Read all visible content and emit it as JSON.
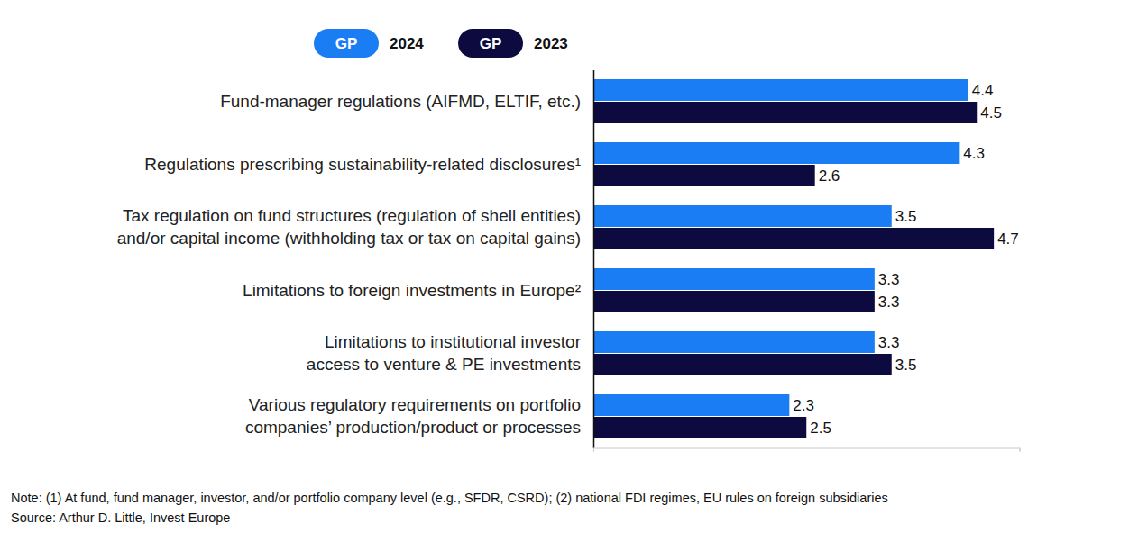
{
  "chart_data": {
    "type": "bar",
    "orientation": "horizontal",
    "data_labels": true,
    "tick_labels": false,
    "grid": false,
    "legend": "top",
    "legend_badge": "GP",
    "categories": [
      "Fund-manager regulations (AIFMD, ELTIF, etc.)",
      "Regulations prescribing sustainability-related disclosures¹",
      "Tax regulation on fund structures (regulation of shell entities)\nand/or capital income (withholding tax or tax on capital gains)",
      "Limitations to foreign investments in Europe²",
      "Limitations to institutional investor\naccess to venture & PE investments",
      "Various regulatory requirements on portfolio\ncompanies’ production/product or processes"
    ],
    "series": [
      {
        "name": "2024",
        "color": "#1a7df4",
        "values": [
          4.4,
          4.3,
          3.5,
          3.3,
          3.3,
          2.3
        ]
      },
      {
        "name": "2023",
        "color": "#0c0a3e",
        "values": [
          4.5,
          2.6,
          4.7,
          3.3,
          3.5,
          2.5
        ]
      }
    ],
    "xlim": [
      0,
      5
    ],
    "xticks": [
      0,
      5
    ],
    "notes": [
      "Note: (1) At fund, fund manager, investor, and/or portfolio company level (e.g., SFDR, CSRD); (2) national FDI regimes, EU rules on foreign subsidiaries",
      "Source: Arthur D. Little, Invest Europe"
    ]
  }
}
